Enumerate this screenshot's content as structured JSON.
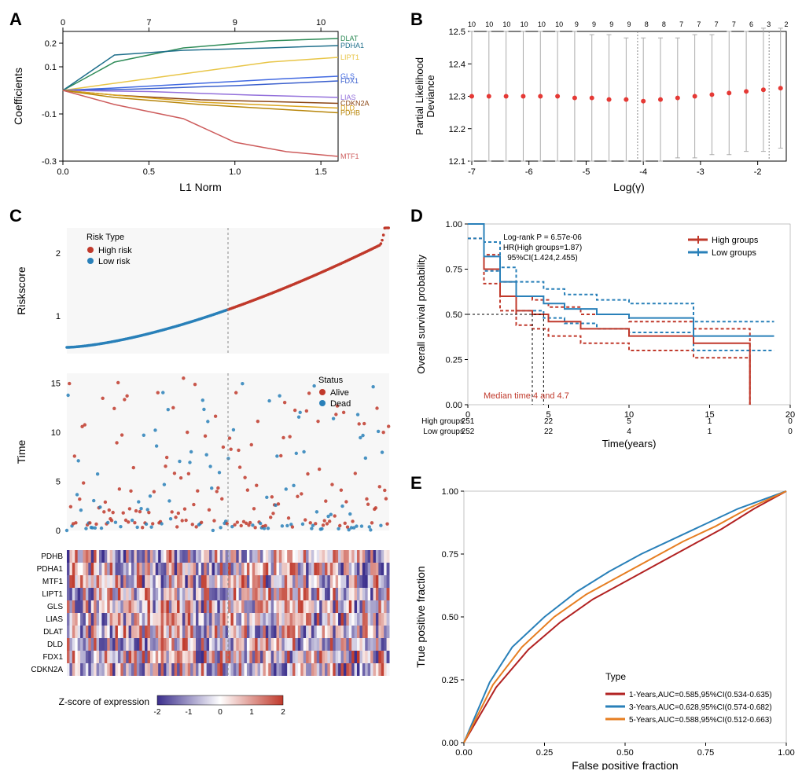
{
  "panelA": {
    "label": "A",
    "xlabel": "L1 Norm",
    "ylabel": "Coefficients",
    "xlim": [
      0,
      1.6
    ],
    "ylim": [
      -0.3,
      0.25
    ],
    "xticks": [
      0.0,
      0.5,
      1.0,
      1.5
    ],
    "yticks": [
      -0.3,
      -0.1,
      0.1,
      0.2
    ],
    "top_ticks": [
      0,
      7,
      9,
      10
    ],
    "top_tick_positions": [
      0,
      0.5,
      1.0,
      1.5
    ],
    "genes": [
      {
        "name": "DLAT",
        "color": "#2e8b57",
        "end_y": 0.22,
        "points": [
          [
            0,
            0
          ],
          [
            0.3,
            0.12
          ],
          [
            0.7,
            0.18
          ],
          [
            1.2,
            0.21
          ],
          [
            1.6,
            0.22
          ]
        ]
      },
      {
        "name": "PDHA1",
        "color": "#1f6f8b",
        "end_y": 0.19,
        "points": [
          [
            0,
            0
          ],
          [
            0.3,
            0.15
          ],
          [
            0.7,
            0.17
          ],
          [
            1.2,
            0.18
          ],
          [
            1.6,
            0.19
          ]
        ]
      },
      {
        "name": "LIPT1",
        "color": "#e8c547",
        "end_y": 0.14,
        "points": [
          [
            0,
            0
          ],
          [
            0.2,
            0.02
          ],
          [
            0.6,
            0.06
          ],
          [
            1.2,
            0.12
          ],
          [
            1.6,
            0.14
          ]
        ]
      },
      {
        "name": "GLS",
        "color": "#4169e1",
        "end_y": 0.06,
        "points": [
          [
            0,
            0
          ],
          [
            0.3,
            0.01
          ],
          [
            0.8,
            0.03
          ],
          [
            1.3,
            0.05
          ],
          [
            1.6,
            0.06
          ]
        ]
      },
      {
        "name": "FDX1",
        "color": "#3a5fcd",
        "end_y": 0.04,
        "points": [
          [
            0,
            0
          ],
          [
            0.4,
            0.005
          ],
          [
            1.0,
            0.02
          ],
          [
            1.6,
            0.04
          ]
        ]
      },
      {
        "name": "LIAS",
        "color": "#9370db",
        "end_y": -0.03,
        "points": [
          [
            0,
            0
          ],
          [
            0.5,
            -0.005
          ],
          [
            1.1,
            -0.02
          ],
          [
            1.6,
            -0.03
          ]
        ]
      },
      {
        "name": "CDKN2A",
        "color": "#8b4513",
        "end_y": -0.055,
        "points": [
          [
            0,
            0
          ],
          [
            0.3,
            -0.02
          ],
          [
            0.8,
            -0.04
          ],
          [
            1.6,
            -0.055
          ]
        ]
      },
      {
        "name": "DLD",
        "color": "#daa520",
        "end_y": -0.075,
        "points": [
          [
            0,
            0
          ],
          [
            0.3,
            -0.02
          ],
          [
            0.8,
            -0.05
          ],
          [
            1.6,
            -0.075
          ]
        ]
      },
      {
        "name": "PDHB",
        "color": "#b8860b",
        "end_y": -0.095,
        "points": [
          [
            0,
            0
          ],
          [
            0.3,
            -0.03
          ],
          [
            0.8,
            -0.06
          ],
          [
            1.6,
            -0.095
          ]
        ]
      },
      {
        "name": "MTF1",
        "color": "#cd5c5c",
        "end_y": -0.28,
        "points": [
          [
            0,
            0
          ],
          [
            0.3,
            -0.06
          ],
          [
            0.7,
            -0.12
          ],
          [
            1.0,
            -0.22
          ],
          [
            1.3,
            -0.26
          ],
          [
            1.6,
            -0.28
          ]
        ]
      }
    ]
  },
  "panelB": {
    "label": "B",
    "xlabel": "Log(γ)",
    "ylabel": "Partial Likelihood\nDeviance",
    "xlim": [
      -7,
      -1.5
    ],
    "ylim": [
      12.1,
      12.5
    ],
    "xticks": [
      -7,
      -6,
      -5,
      -4,
      -3,
      -2
    ],
    "yticks": [
      12.1,
      12.2,
      12.3,
      12.4,
      12.5
    ],
    "top_labels": [
      10,
      10,
      10,
      10,
      10,
      10,
      9,
      9,
      9,
      9,
      8,
      8,
      7,
      7,
      7,
      7,
      6,
      3,
      2
    ],
    "dot_color": "#e53935",
    "vline_positions": [
      -4.1,
      -1.8
    ],
    "points": [
      {
        "x": -7.0,
        "y": 12.3,
        "lo": 12.1,
        "hi": 12.5
      },
      {
        "x": -6.7,
        "y": 12.3,
        "lo": 12.1,
        "hi": 12.5
      },
      {
        "x": -6.4,
        "y": 12.3,
        "lo": 12.1,
        "hi": 12.5
      },
      {
        "x": -6.1,
        "y": 12.3,
        "lo": 12.1,
        "hi": 12.5
      },
      {
        "x": -5.8,
        "y": 12.3,
        "lo": 12.1,
        "hi": 12.5
      },
      {
        "x": -5.5,
        "y": 12.3,
        "lo": 12.1,
        "hi": 12.5
      },
      {
        "x": -5.2,
        "y": 12.295,
        "lo": 12.1,
        "hi": 12.5
      },
      {
        "x": -4.9,
        "y": 12.295,
        "lo": 12.1,
        "hi": 12.49
      },
      {
        "x": -4.6,
        "y": 12.29,
        "lo": 12.1,
        "hi": 12.49
      },
      {
        "x": -4.3,
        "y": 12.29,
        "lo": 12.1,
        "hi": 12.48
      },
      {
        "x": -4.0,
        "y": 12.285,
        "lo": 12.1,
        "hi": 12.48
      },
      {
        "x": -3.7,
        "y": 12.29,
        "lo": 12.1,
        "hi": 12.48
      },
      {
        "x": -3.4,
        "y": 12.295,
        "lo": 12.11,
        "hi": 12.48
      },
      {
        "x": -3.1,
        "y": 12.3,
        "lo": 12.11,
        "hi": 12.49
      },
      {
        "x": -2.8,
        "y": 12.305,
        "lo": 12.12,
        "hi": 12.49
      },
      {
        "x": -2.5,
        "y": 12.31,
        "lo": 12.12,
        "hi": 12.5
      },
      {
        "x": -2.2,
        "y": 12.315,
        "lo": 12.13,
        "hi": 12.5
      },
      {
        "x": -1.9,
        "y": 12.32,
        "lo": 12.13,
        "hi": 12.51
      },
      {
        "x": -1.6,
        "y": 12.325,
        "lo": 12.14,
        "hi": 12.51
      }
    ]
  },
  "panelC": {
    "label": "C",
    "risk": {
      "ylabel": "Riskscore",
      "legend_title": "Risk Type",
      "high_label": "High risk",
      "low_label": "Low risk",
      "high_color": "#c0392b",
      "low_color": "#2980b9",
      "ylim": [
        0.4,
        2.4
      ],
      "yticks": [
        1,
        2
      ],
      "n": 503
    },
    "time": {
      "ylabel": "Time",
      "legend_title": "Status",
      "alive_label": "Alive",
      "dead_label": "Dead",
      "alive_color": "#c0392b",
      "dead_color": "#2980b9",
      "ylim": [
        0,
        16
      ],
      "yticks": [
        0,
        5,
        10,
        15
      ]
    },
    "heatmap": {
      "genes": [
        "PDHB",
        "PDHA1",
        "MTF1",
        "LIPT1",
        "GLS",
        "LIAS",
        "DLAT",
        "DLD",
        "FDX1",
        "CDKN2A"
      ],
      "colorbar_label": "Z-score of expression",
      "colorbar_ticks": [
        -2,
        -1,
        0,
        1,
        2
      ],
      "low_color": "#3b2e8c",
      "mid_color": "#ffffff",
      "high_color": "#c0392b"
    }
  },
  "panelD": {
    "label": "D",
    "xlabel": "Time(years)",
    "ylabel": "Overall survival probability",
    "xlim": [
      0,
      20
    ],
    "ylim": [
      0,
      1
    ],
    "xticks": [
      0,
      5,
      10,
      15,
      20
    ],
    "yticks": [
      0,
      0.25,
      0.5,
      0.75,
      1.0
    ],
    "stats_text": "Log-rank P = 6.57e-06\nHR(High groups=1.87)\n95%CI(1.424,2.455)",
    "median_text": "Median time:4 and 4.7",
    "median_color": "#c0392b",
    "legend": [
      {
        "label": "High groups",
        "color": "#c0392b"
      },
      {
        "label": "Low groups",
        "color": "#2980b9"
      }
    ],
    "high_curve": [
      [
        0,
        1.0
      ],
      [
        1,
        0.75
      ],
      [
        2,
        0.6
      ],
      [
        3,
        0.52
      ],
      [
        4,
        0.5
      ],
      [
        5,
        0.46
      ],
      [
        7,
        0.42
      ],
      [
        10,
        0.38
      ],
      [
        14,
        0.34
      ],
      [
        17,
        0.34
      ],
      [
        17.5,
        0.0
      ]
    ],
    "low_curve": [
      [
        0,
        1.0
      ],
      [
        1,
        0.82
      ],
      [
        2,
        0.68
      ],
      [
        3,
        0.6
      ],
      [
        4.7,
        0.56
      ],
      [
        6,
        0.53
      ],
      [
        8,
        0.5
      ],
      [
        10,
        0.48
      ],
      [
        14,
        0.38
      ],
      [
        19,
        0.38
      ]
    ],
    "risk_table": {
      "rows": [
        "High groups",
        "Low groups"
      ],
      "values": [
        [
          251,
          22,
          5,
          1,
          0
        ],
        [
          252,
          22,
          4,
          1,
          0
        ]
      ]
    }
  },
  "panelE": {
    "label": "E",
    "xlabel": "False positive fraction",
    "ylabel": "True positive fraction",
    "xlim": [
      0,
      1
    ],
    "ylim": [
      0,
      1
    ],
    "ticks": [
      0,
      0.25,
      0.5,
      0.75,
      1.0
    ],
    "legend_title": "Type",
    "curves": [
      {
        "label": "1-Years,AUC=0.585,95%CI(0.534-0.635)",
        "color": "#b22222",
        "pts": [
          [
            0,
            0
          ],
          [
            0.1,
            0.22
          ],
          [
            0.2,
            0.37
          ],
          [
            0.3,
            0.48
          ],
          [
            0.4,
            0.57
          ],
          [
            0.5,
            0.64
          ],
          [
            0.6,
            0.71
          ],
          [
            0.7,
            0.78
          ],
          [
            0.8,
            0.85
          ],
          [
            0.9,
            0.93
          ],
          [
            1,
            1
          ]
        ]
      },
      {
        "label": "3-Years,AUC=0.628,95%CI(0.574-0.682)",
        "color": "#2980b9",
        "pts": [
          [
            0,
            0
          ],
          [
            0.08,
            0.24
          ],
          [
            0.15,
            0.38
          ],
          [
            0.25,
            0.5
          ],
          [
            0.35,
            0.6
          ],
          [
            0.45,
            0.68
          ],
          [
            0.55,
            0.75
          ],
          [
            0.65,
            0.81
          ],
          [
            0.75,
            0.87
          ],
          [
            0.85,
            0.93
          ],
          [
            1,
            1
          ]
        ]
      },
      {
        "label": "5-Years,AUC=0.588,95%CI(0.512-0.663)",
        "color": "#e67e22",
        "pts": [
          [
            0,
            0
          ],
          [
            0.09,
            0.23
          ],
          [
            0.18,
            0.38
          ],
          [
            0.28,
            0.5
          ],
          [
            0.38,
            0.59
          ],
          [
            0.48,
            0.66
          ],
          [
            0.58,
            0.73
          ],
          [
            0.68,
            0.8
          ],
          [
            0.78,
            0.86
          ],
          [
            0.88,
            0.93
          ],
          [
            1,
            1
          ]
        ]
      }
    ]
  }
}
